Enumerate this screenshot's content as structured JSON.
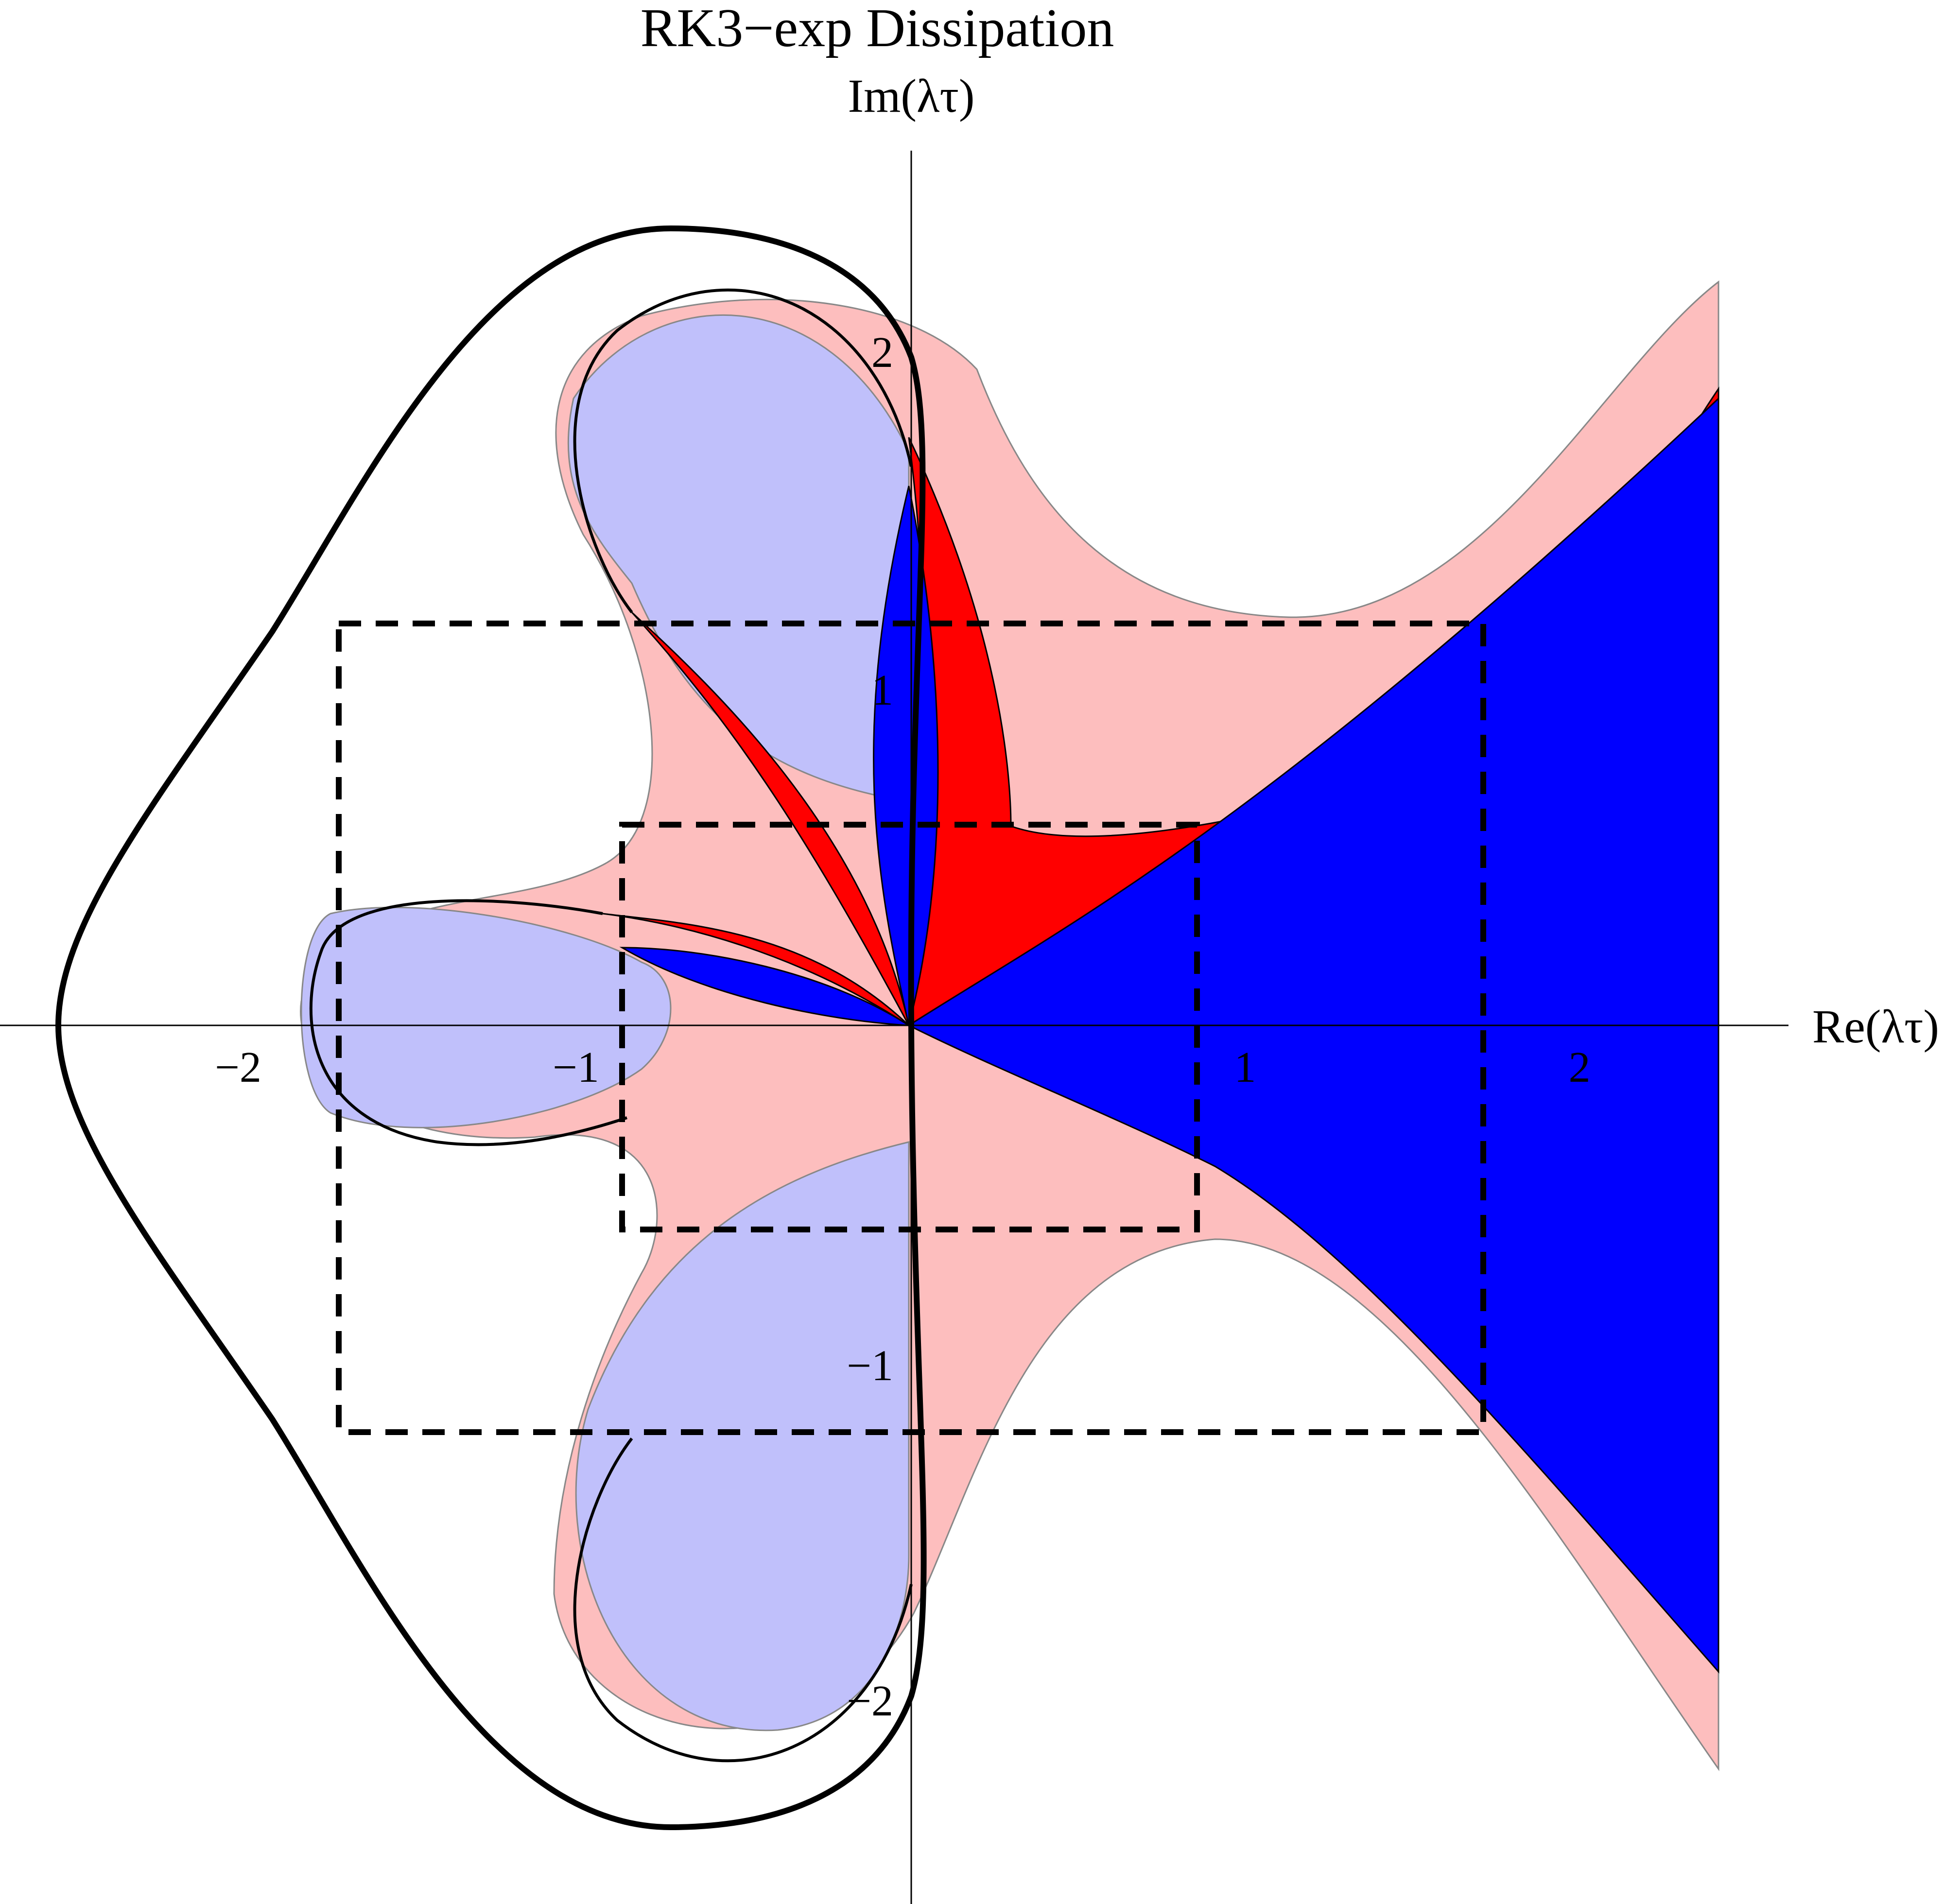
{
  "chart_data": {
    "type": "region-plot",
    "title": "RK3−exp Dissipation",
    "xlabel": "Re(λτ)",
    "ylabel": "Im(λτ)",
    "xlim": [
      -2.7,
      3.0
    ],
    "ylim": [
      -2.6,
      2.6
    ],
    "xticks": [
      {
        "value": -2,
        "label": "−2"
      },
      {
        "value": -1,
        "label": "−1"
      },
      {
        "value": 1,
        "label": "1"
      },
      {
        "value": 2,
        "label": "2"
      }
    ],
    "yticks": [
      {
        "value": 2,
        "label": "2"
      },
      {
        "value": 1,
        "label": "1"
      },
      {
        "value": -1,
        "label": "−1"
      },
      {
        "value": -2,
        "label": "−2"
      }
    ],
    "colors": {
      "light_red": "#fdbebe",
      "light_blue": "#c0c0fb",
      "red": "#ff0000",
      "blue": "#0000ff",
      "outline": "#000000"
    },
    "regions": [
      {
        "id": "light-red-region",
        "color": "light_red"
      },
      {
        "id": "light-blue-region",
        "color": "light_blue"
      },
      {
        "id": "red-region",
        "color": "red"
      },
      {
        "id": "blue-region",
        "color": "blue"
      }
    ],
    "dashed_boxes": [
      {
        "x": [
          -1.71,
          1.68
        ],
        "y": [
          -1.2,
          1.2
        ]
      },
      {
        "x": [
          -0.86,
          0.85
        ],
        "y": [
          -0.6,
          0.6
        ]
      }
    ],
    "outer_contour": "solid black closed curve enclosing the lobes on the left, crossing the imaginary axis near ±1.75",
    "grid": false
  }
}
